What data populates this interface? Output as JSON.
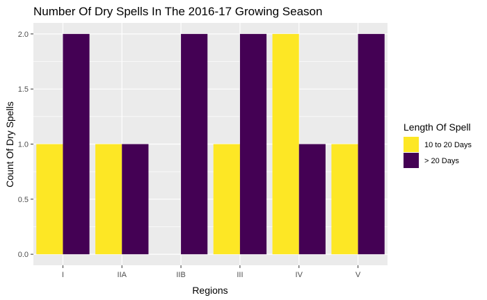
{
  "chart_data": {
    "type": "bar",
    "title": "Number Of Dry Spells In The 2016-17 Growing Season",
    "xlabel": "Regions",
    "ylabel": "Count Of Dry Spells",
    "categories": [
      "I",
      "IIA",
      "IIB",
      "III",
      "IV",
      "V"
    ],
    "series": [
      {
        "name": "10 to 20 Days",
        "color": "#FDE725",
        "values": [
          1,
          1,
          0,
          1,
          2,
          1
        ]
      },
      {
        "name": "> 20 Days",
        "color": "#440154",
        "values": [
          2,
          1,
          2,
          2,
          1,
          2
        ]
      }
    ],
    "ylim": [
      -0.1,
      2.1
    ],
    "yticks": [
      "0.0",
      "0.5",
      "1.0",
      "1.5",
      "2.0"
    ],
    "grid": true,
    "legend": {
      "title": "Length Of Spell",
      "placement": "right"
    },
    "colors": {
      "panel": "#EBEBEB",
      "grid": "#FFFFFF"
    }
  }
}
